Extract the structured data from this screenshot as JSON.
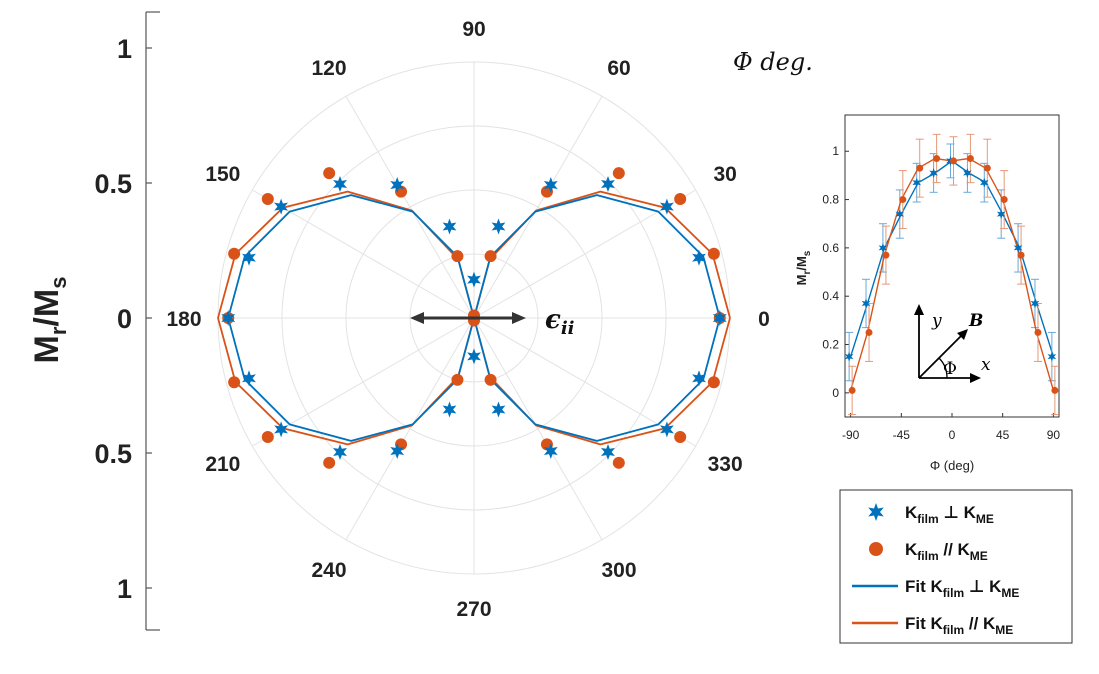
{
  "chart_data": [
    {
      "type": "polar-scatter",
      "title": "",
      "angle_unit_label": "Φ deg.",
      "radial_axis_label": "M_r/M_s",
      "radial_axis_label_main": "M",
      "radial_axis_label_sub1": "r",
      "radial_axis_label_slash": "/M",
      "radial_axis_label_sub2": "s",
      "radial_range": [
        0,
        1
      ],
      "angle_ticks": [
        "0",
        "30",
        "60",
        "90",
        "120",
        "150",
        "180",
        "210",
        "240",
        "270",
        "300",
        "330"
      ],
      "left_axis_ticks": [
        "1",
        "0.5",
        "0",
        "0.5",
        "1"
      ],
      "annotation": "ϵ",
      "annotation_sub": "ii",
      "series": [
        {
          "name": "K_film ⊥ K_ME",
          "marker": "star",
          "color": "#0072bd",
          "angles_deg": [
            0,
            15,
            30,
            45,
            60,
            75,
            90,
            105,
            120,
            135,
            150,
            165,
            180,
            195,
            210,
            225,
            240,
            255,
            270,
            285,
            300,
            315,
            330,
            345
          ],
          "r": [
            0.96,
            0.91,
            0.87,
            0.74,
            0.6,
            0.37,
            0.15,
            0.37,
            0.6,
            0.74,
            0.87,
            0.91,
            0.96,
            0.91,
            0.87,
            0.74,
            0.6,
            0.37,
            0.15,
            0.37,
            0.6,
            0.74,
            0.87,
            0.91
          ]
        },
        {
          "name": "K_film // K_ME",
          "marker": "circle",
          "color": "#d95319",
          "angles_deg": [
            0,
            15,
            30,
            45,
            60,
            75,
            90,
            105,
            120,
            135,
            150,
            165,
            180,
            195,
            210,
            225,
            240,
            255,
            270,
            285,
            300,
            315,
            330,
            345
          ],
          "r": [
            0.96,
            0.97,
            0.93,
            0.8,
            0.57,
            0.25,
            0.01,
            0.25,
            0.57,
            0.8,
            0.93,
            0.97,
            0.96,
            0.97,
            0.93,
            0.8,
            0.57,
            0.25,
            0.01,
            0.25,
            0.57,
            0.8,
            0.93,
            0.97
          ]
        },
        {
          "name": "Fit K_film ⊥ K_ME",
          "marker": "line",
          "color": "#0072bd",
          "params": {
            "a": 0.96,
            "b": 0.0
          }
        },
        {
          "name": "Fit K_film // K_ME",
          "marker": "line",
          "color": "#d95319",
          "params": {
            "a": 1.03,
            "b": 0.03
          }
        }
      ]
    },
    {
      "type": "scatter",
      "xlabel": "Φ (deg)",
      "ylabel": "M_r/M_s",
      "ylabel_main": "M",
      "ylabel_sub1": "r",
      "ylabel_slash": "/M",
      "ylabel_sub2": "s",
      "xlim": [
        -95,
        95
      ],
      "ylim": [
        -0.1,
        1.15
      ],
      "xticks": [
        -90,
        -45,
        0,
        45,
        90
      ],
      "yticks": [
        0,
        0.2,
        0.4,
        0.6,
        0.8,
        1
      ],
      "x": [
        -90,
        -75,
        -60,
        -45,
        -30,
        -15,
        0,
        15,
        30,
        45,
        60,
        75,
        90
      ],
      "series": [
        {
          "name": "K_film ⊥ K_ME",
          "color": "#0072bd",
          "marker": "star",
          "values": [
            0.15,
            0.37,
            0.6,
            0.74,
            0.87,
            0.91,
            0.96,
            0.91,
            0.87,
            0.74,
            0.6,
            0.37,
            0.15
          ],
          "err": [
            0.1,
            0.1,
            0.1,
            0.1,
            0.08,
            0.08,
            0.07,
            0.08,
            0.08,
            0.1,
            0.1,
            0.1,
            0.1
          ]
        },
        {
          "name": "K_film // K_ME",
          "color": "#d95319",
          "marker": "circle",
          "values": [
            0.01,
            0.25,
            0.57,
            0.8,
            0.93,
            0.97,
            0.96,
            0.97,
            0.93,
            0.8,
            0.57,
            0.25,
            0.01
          ],
          "err": [
            0.1,
            0.12,
            0.12,
            0.12,
            0.12,
            0.1,
            0.1,
            0.1,
            0.12,
            0.12,
            0.12,
            0.12,
            0.1
          ]
        }
      ],
      "inset_diagram": {
        "y_label": "y",
        "x_label": "x",
        "b_label": "B",
        "phi_label": "Φ"
      }
    }
  ],
  "legend": {
    "items": [
      {
        "pre": "K",
        "sub1": "film",
        "mid": " ⊥ K",
        "sub2": "ME"
      },
      {
        "pre": "K",
        "sub1": "film",
        "mid": " // K",
        "sub2": "ME"
      },
      {
        "pre": "Fit K",
        "sub1": "film",
        "mid": " ⊥  K",
        "sub2": "ME"
      },
      {
        "pre": "Fit K",
        "sub1": "film",
        "mid": " // K",
        "sub2": "ME"
      }
    ]
  }
}
